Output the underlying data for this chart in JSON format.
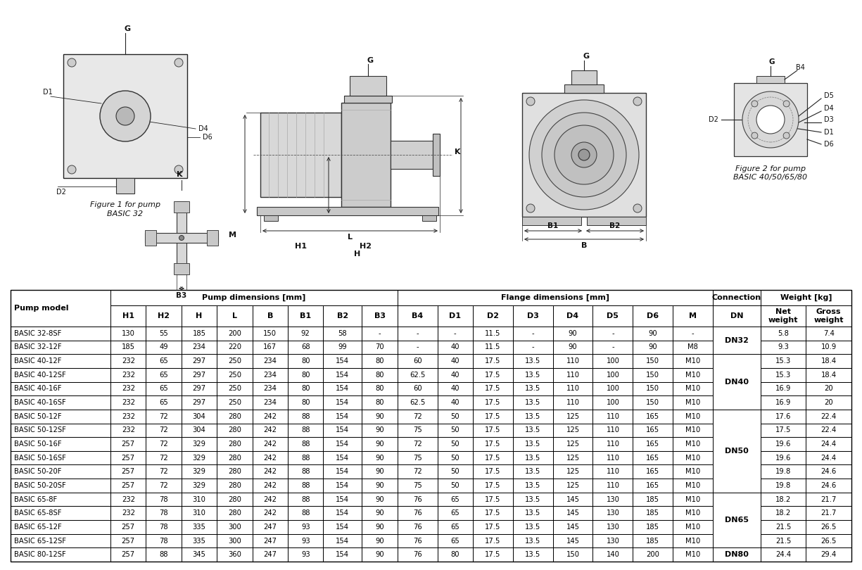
{
  "table_data": [
    [
      "BASIC 32-8SF",
      "130",
      "55",
      "185",
      "200",
      "150",
      "92",
      "58",
      "-",
      "-",
      "-",
      "11.5",
      "-",
      "90",
      "-",
      "90",
      "-",
      "DN32",
      "5.8",
      "7.4"
    ],
    [
      "BASIC 32-12F",
      "185",
      "49",
      "234",
      "220",
      "167",
      "68",
      "99",
      "70",
      "-",
      "40",
      "11.5",
      "-",
      "90",
      "-",
      "90",
      "M8",
      "DN32",
      "9.3",
      "10.9"
    ],
    [
      "BASIC 40-12F",
      "232",
      "65",
      "297",
      "250",
      "234",
      "80",
      "154",
      "80",
      "60",
      "40",
      "17.5",
      "13.5",
      "110",
      "100",
      "150",
      "M10",
      "DN40",
      "15.3",
      "18.4"
    ],
    [
      "BASIC 40-12SF",
      "232",
      "65",
      "297",
      "250",
      "234",
      "80",
      "154",
      "80",
      "62.5",
      "40",
      "17.5",
      "13.5",
      "110",
      "100",
      "150",
      "M10",
      "DN40",
      "15.3",
      "18.4"
    ],
    [
      "BASIC 40-16F",
      "232",
      "65",
      "297",
      "250",
      "234",
      "80",
      "154",
      "80",
      "60",
      "40",
      "17.5",
      "13.5",
      "110",
      "100",
      "150",
      "M10",
      "DN40",
      "16.9",
      "20"
    ],
    [
      "BASIC 40-16SF",
      "232",
      "65",
      "297",
      "250",
      "234",
      "80",
      "154",
      "80",
      "62.5",
      "40",
      "17.5",
      "13.5",
      "110",
      "100",
      "150",
      "M10",
      "DN40",
      "16.9",
      "20"
    ],
    [
      "BASIC 50-12F",
      "232",
      "72",
      "304",
      "280",
      "242",
      "88",
      "154",
      "90",
      "72",
      "50",
      "17.5",
      "13.5",
      "125",
      "110",
      "165",
      "M10",
      "DN50",
      "17.6",
      "22.4"
    ],
    [
      "BASIC 50-12SF",
      "232",
      "72",
      "304",
      "280",
      "242",
      "88",
      "154",
      "90",
      "75",
      "50",
      "17.5",
      "13.5",
      "125",
      "110",
      "165",
      "M10",
      "DN50",
      "17.5",
      "22.4"
    ],
    [
      "BASIC 50-16F",
      "257",
      "72",
      "329",
      "280",
      "242",
      "88",
      "154",
      "90",
      "72",
      "50",
      "17.5",
      "13.5",
      "125",
      "110",
      "165",
      "M10",
      "DN50",
      "19.6",
      "24.4"
    ],
    [
      "BASIC 50-16SF",
      "257",
      "72",
      "329",
      "280",
      "242",
      "88",
      "154",
      "90",
      "75",
      "50",
      "17.5",
      "13.5",
      "125",
      "110",
      "165",
      "M10",
      "DN50",
      "19.6",
      "24.4"
    ],
    [
      "BASIC 50-20F",
      "257",
      "72",
      "329",
      "280",
      "242",
      "88",
      "154",
      "90",
      "72",
      "50",
      "17.5",
      "13.5",
      "125",
      "110",
      "165",
      "M10",
      "DN50",
      "19.8",
      "24.6"
    ],
    [
      "BASIC 50-20SF",
      "257",
      "72",
      "329",
      "280",
      "242",
      "88",
      "154",
      "90",
      "75",
      "50",
      "17.5",
      "13.5",
      "125",
      "110",
      "165",
      "M10",
      "DN50",
      "19.8",
      "24.6"
    ],
    [
      "BASIC 65-8F",
      "232",
      "78",
      "310",
      "280",
      "242",
      "88",
      "154",
      "90",
      "76",
      "65",
      "17.5",
      "13.5",
      "145",
      "130",
      "185",
      "M10",
      "DN65",
      "18.2",
      "21.7"
    ],
    [
      "BASIC 65-8SF",
      "232",
      "78",
      "310",
      "280",
      "242",
      "88",
      "154",
      "90",
      "76",
      "65",
      "17.5",
      "13.5",
      "145",
      "130",
      "185",
      "M10",
      "DN65",
      "18.2",
      "21.7"
    ],
    [
      "BASIC 65-12F",
      "257",
      "78",
      "335",
      "300",
      "247",
      "93",
      "154",
      "90",
      "76",
      "65",
      "17.5",
      "13.5",
      "145",
      "130",
      "185",
      "M10",
      "DN65",
      "21.5",
      "26.5"
    ],
    [
      "BASIC 65-12SF",
      "257",
      "78",
      "335",
      "300",
      "247",
      "93",
      "154",
      "90",
      "76",
      "65",
      "17.5",
      "13.5",
      "145",
      "130",
      "185",
      "M10",
      "DN65",
      "21.5",
      "26.5"
    ],
    [
      "BASIC 80-12SF",
      "257",
      "88",
      "345",
      "360",
      "247",
      "93",
      "154",
      "90",
      "76",
      "80",
      "17.5",
      "13.5",
      "150",
      "140",
      "200",
      "M10",
      "DN80",
      "24.4",
      "29.4"
    ]
  ],
  "dn_groups": [
    [
      0,
      1,
      "DN32"
    ],
    [
      2,
      5,
      "DN40"
    ],
    [
      6,
      11,
      "DN50"
    ],
    [
      12,
      15,
      "DN65"
    ],
    [
      16,
      16,
      "DN80"
    ]
  ],
  "col_widths_rel": [
    2.2,
    0.78,
    0.78,
    0.78,
    0.78,
    0.78,
    0.78,
    0.85,
    0.78,
    0.88,
    0.78,
    0.88,
    0.88,
    0.88,
    0.88,
    0.88,
    0.88,
    1.05,
    1.0,
    1.0
  ],
  "bg_color": "#ffffff",
  "text_color": "#000000",
  "line_color": "#000000",
  "table_font_size": 7.2,
  "header_font_size": 8.0
}
